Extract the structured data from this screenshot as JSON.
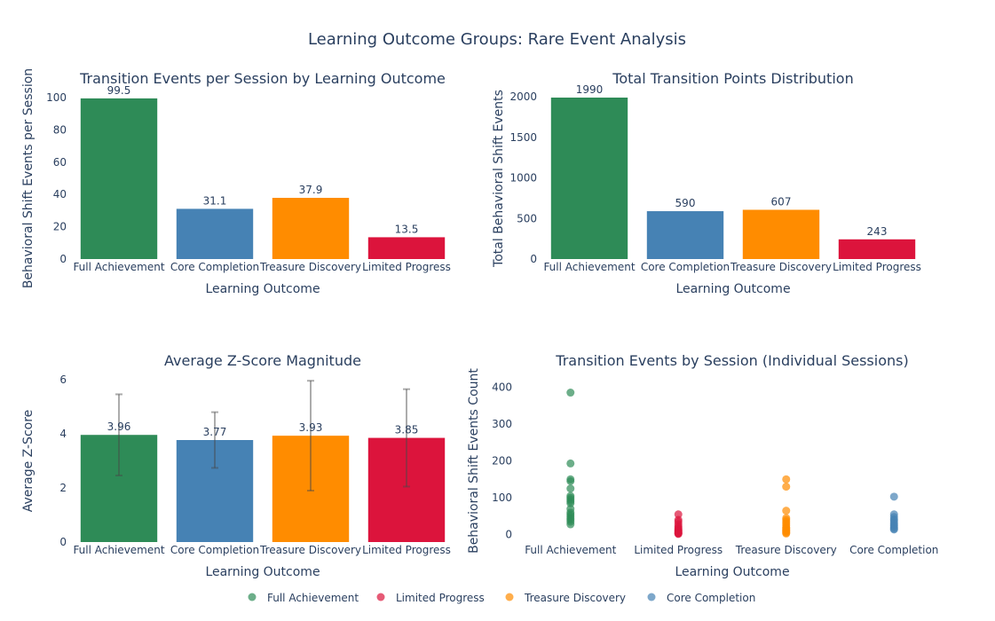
{
  "title": "Learning Outcome Groups: Rare Event Analysis",
  "colors": {
    "Full Achievement": "#2e8b57",
    "Core Completion": "#4682b4",
    "Treasure Discovery": "#ff8c00",
    "Limited Progress": "#dc143c"
  },
  "legend": [
    "Full Achievement",
    "Limited Progress",
    "Treasure Discovery",
    "Core Completion"
  ],
  "chart_data": [
    {
      "type": "bar",
      "title": "Transition Events per Session by Learning Outcome",
      "xlabel": "Learning Outcome",
      "ylabel": "Behavioral Shift Events per Session",
      "categories": [
        "Full Achievement",
        "Core Completion",
        "Treasure Discovery",
        "Limited Progress"
      ],
      "values": [
        99.5,
        31.1,
        37.9,
        13.5
      ],
      "value_labels": [
        "99.5",
        "31.1",
        "37.9",
        "13.5"
      ],
      "ylim": [
        0,
        100
      ],
      "yticks": [
        0,
        20,
        40,
        60,
        80,
        100
      ]
    },
    {
      "type": "bar",
      "title": "Total Transition Points Distribution",
      "xlabel": "Learning Outcome",
      "ylabel": "Total Behavioral Shift Events",
      "categories": [
        "Full Achievement",
        "Core Completion",
        "Treasure Discovery",
        "Limited Progress"
      ],
      "values": [
        1990,
        590,
        607,
        243
      ],
      "value_labels": [
        "1990",
        "590",
        "607",
        "243"
      ],
      "ylim": [
        0,
        1990
      ],
      "yticks": [
        0,
        500,
        1000,
        1500,
        2000
      ]
    },
    {
      "type": "bar",
      "title": "Average Z-Score Magnitude",
      "xlabel": "Learning Outcome",
      "ylabel": "Average Z-Score",
      "categories": [
        "Full Achievement",
        "Core Completion",
        "Treasure Discovery",
        "Limited Progress"
      ],
      "values": [
        3.96,
        3.77,
        3.93,
        3.85
      ],
      "value_labels": [
        "3.96",
        "3.77",
        "3.93",
        "3.85"
      ],
      "errors": [
        1.5,
        1.03,
        2.03,
        1.8
      ],
      "ylim": [
        0,
        6
      ],
      "yticks": [
        0,
        2,
        4,
        6
      ]
    },
    {
      "type": "scatter",
      "title": "Transition Events by Session (Individual Sessions)",
      "xlabel": "Learning Outcome",
      "ylabel": "Behavioral Shift Events Count",
      "categories": [
        "Full Achievement",
        "Limited Progress",
        "Treasure Discovery",
        "Core Completion"
      ],
      "ylim": [
        -20,
        420
      ],
      "yticks": [
        0,
        100,
        200,
        300,
        400
      ],
      "series": [
        {
          "name": "Full Achievement",
          "values": [
            385,
            193,
            150,
            145,
            125,
            105,
            100,
            95,
            90,
            85,
            70,
            60,
            55,
            50,
            45,
            40,
            35,
            28
          ]
        },
        {
          "name": "Limited Progress",
          "values": [
            55,
            40,
            35,
            28,
            22,
            18,
            15,
            12,
            10,
            8,
            6,
            4,
            3,
            2
          ]
        },
        {
          "name": "Treasure Discovery",
          "values": [
            150,
            130,
            65,
            45,
            40,
            35,
            30,
            25,
            20,
            18,
            15,
            12,
            10,
            8,
            5,
            3
          ]
        },
        {
          "name": "Core Completion",
          "values": [
            103,
            55,
            48,
            42,
            38,
            33,
            28,
            24,
            20,
            16,
            14
          ]
        }
      ]
    }
  ]
}
